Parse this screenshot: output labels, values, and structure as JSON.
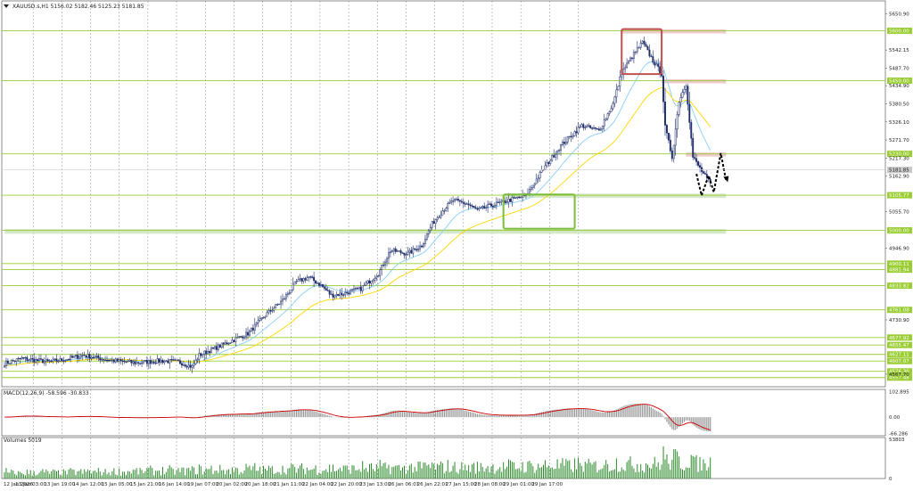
{
  "chart_data": {
    "type": "candlestick",
    "symbol_header": "XAUUSD.s,H1  5156.02 5182.46 5125.23 5181.85",
    "current_price": 5181.85,
    "price_axis": {
      "ylim": [
        4530,
        5655
      ],
      "ticks": [
        {
          "label": "5650.90",
          "v": 5650.9
        },
        {
          "label": "5542.15",
          "v": 5542.15
        },
        {
          "label": "5487.70",
          "v": 5487.7
        },
        {
          "label": "5434.90",
          "v": 5434.9
        },
        {
          "label": "5380.50",
          "v": 5380.5
        },
        {
          "label": "5326.10",
          "v": 5326.1
        },
        {
          "label": "5271.70",
          "v": 5271.7
        },
        {
          "label": "5217.30",
          "v": 5217.3
        },
        {
          "label": "5162.90",
          "v": 5162.9
        },
        {
          "label": "5055.70",
          "v": 5055.7
        },
        {
          "label": "4946.90",
          "v": 4946.9
        },
        {
          "label": "4730.90",
          "v": 4730.9
        },
        {
          "label": "4567.70",
          "v": 4567.7
        }
      ]
    },
    "levels": [
      {
        "label": "5600.00",
        "v": 5600,
        "color": "#9acd32"
      },
      {
        "label": "5450.00",
        "v": 5450,
        "color": "#9acd32"
      },
      {
        "label": "5230.00",
        "v": 5230,
        "color": "#9acd32"
      },
      {
        "label": "5105.77",
        "v": 5105.77,
        "color": "#9acd32"
      },
      {
        "label": "5000.00",
        "v": 5000,
        "color": "#9acd32"
      },
      {
        "label": "4900.11",
        "v": 4900.11,
        "color": "#9acd32"
      },
      {
        "label": "4881.94",
        "v": 4881.94,
        "color": "#9acd32"
      },
      {
        "label": "4833.82",
        "v": 4833.82,
        "color": "#9acd32"
      },
      {
        "label": "4761.08",
        "v": 4761.08,
        "color": "#9acd32"
      },
      {
        "label": "4677.92",
        "v": 4677.92,
        "color": "#9acd32"
      },
      {
        "label": "4655.47",
        "v": 4655.47,
        "color": "#9acd32"
      },
      {
        "label": "4627.11",
        "v": 4627.11,
        "color": "#9acd32"
      },
      {
        "label": "4607.07",
        "v": 4607.07,
        "color": "#9acd32"
      },
      {
        "label": "4576.30",
        "v": 4576.3,
        "color": "#9acd32"
      },
      {
        "label": "4557.48",
        "v": 4557.48,
        "color": "#9acd32"
      }
    ],
    "time_axis": {
      "labels": [
        "12 Jan 2026",
        "13 Jan 03:00",
        "13 Jan 19:00",
        "14 Jan 12:00",
        "15 Jan 05:00",
        "15 Jan 21:00",
        "16 Jan 14:00",
        "19 Jan 07:00",
        "20 Jan 02:00",
        "20 Jan 18:00",
        "21 Jan 11:00",
        "22 Jan 04:00",
        "22 Jan 20:00",
        "23 Jan 13:00",
        "26 Jan 06:01",
        "26 Jan 22:01",
        "27 Jan 15:00",
        "28 Jan 08:00",
        "29 Jan 01:00",
        "29 Jan 17:00"
      ],
      "bars_per_label": 16.5
    },
    "key_points": [
      [
        0,
        4600
      ],
      [
        10,
        4615
      ],
      [
        25,
        4605
      ],
      [
        35,
        4612
      ],
      [
        45,
        4625
      ],
      [
        60,
        4610
      ],
      [
        75,
        4602
      ],
      [
        90,
        4608
      ],
      [
        100,
        4605
      ],
      [
        108,
        4590
      ],
      [
        112,
        4625
      ],
      [
        125,
        4655
      ],
      [
        140,
        4690
      ],
      [
        150,
        4745
      ],
      [
        160,
        4790
      ],
      [
        168,
        4845
      ],
      [
        175,
        4860
      ],
      [
        182,
        4835
      ],
      [
        188,
        4805
      ],
      [
        195,
        4810
      ],
      [
        205,
        4825
      ],
      [
        215,
        4870
      ],
      [
        222,
        4940
      ],
      [
        232,
        4930
      ],
      [
        240,
        4955
      ],
      [
        246,
        5020
      ],
      [
        252,
        5060
      ],
      [
        258,
        5090
      ],
      [
        266,
        5080
      ],
      [
        272,
        5060
      ],
      [
        280,
        5075
      ],
      [
        290,
        5090
      ],
      [
        300,
        5105
      ],
      [
        310,
        5185
      ],
      [
        320,
        5255
      ],
      [
        332,
        5315
      ],
      [
        342,
        5300
      ],
      [
        350,
        5380
      ],
      [
        355,
        5475
      ],
      [
        362,
        5530
      ],
      [
        367,
        5565
      ],
      [
        373,
        5510
      ],
      [
        378,
        5470
      ],
      [
        380,
        5310
      ],
      [
        384,
        5220
      ],
      [
        388,
        5390
      ],
      [
        392,
        5440
      ],
      [
        396,
        5220
      ],
      [
        402,
        5170
      ],
      [
        406,
        5140
      ]
    ],
    "annotations": [
      {
        "kind": "box",
        "color": "#c0504d",
        "x0": 355,
        "x1": 378,
        "y0": 5470,
        "y1": 5605
      },
      {
        "kind": "zone",
        "color": "#e6b8b7",
        "x0": 355,
        "x1": 415,
        "v0": 5592,
        "v1": 5604
      },
      {
        "kind": "zone",
        "color": "#e6b8b7",
        "x0": 378,
        "x1": 415,
        "v0": 5442,
        "v1": 5454
      },
      {
        "kind": "zone",
        "color": "#e6b8b7",
        "x0": 392,
        "x1": 415,
        "v0": 5222,
        "v1": 5234
      },
      {
        "kind": "box",
        "color": "#7cbd3c",
        "x0": 287,
        "x1": 328,
        "y0": 5005,
        "y1": 5108
      },
      {
        "kind": "zone",
        "color": "#c5e0b4",
        "x0": 287,
        "x1": 415,
        "v0": 5098,
        "v1": 5110
      },
      {
        "kind": "zone",
        "color": "#c5e0b4",
        "x0": 0,
        "x1": 415,
        "v0": 4990,
        "v1": 5004
      },
      {
        "kind": "projection",
        "points": [
          [
            398,
            5170
          ],
          [
            401,
            5105
          ],
          [
            405,
            5165
          ],
          [
            408,
            5115
          ],
          [
            412,
            5232
          ],
          [
            415,
            5150
          ]
        ]
      }
    ],
    "macd": {
      "label": "MACD(12,26,9) -58.596 -30.833",
      "ticks": [
        {
          "label": "102.895",
          "v": 102.895
        },
        {
          "label": "0.00",
          "v": 0
        },
        {
          "label": "-66.286",
          "v": -66.286
        }
      ],
      "ylim": [
        -75,
        112
      ]
    },
    "volume": {
      "label": "Volumes 5019",
      "ticks": [
        {
          "label": "53803",
          "v": 53803
        },
        {
          "label": "0",
          "v": 0
        }
      ],
      "ylim": [
        0,
        56000
      ]
    },
    "colors": {
      "candle": "#1f2d6b",
      "ma_fast": "#87cefa",
      "ma_slow": "#ffd700",
      "signal": "#cc0000",
      "grid": "#8a8a8a",
      "level": "#9acd32",
      "badge": "#9acd32"
    }
  }
}
